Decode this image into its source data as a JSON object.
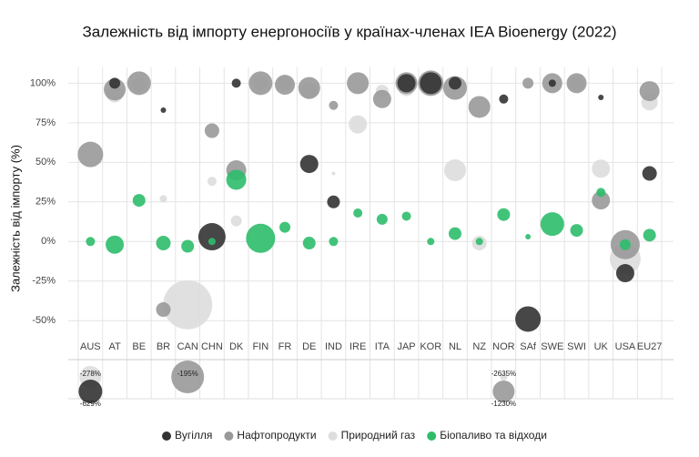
{
  "chart_data": {
    "type": "bubble",
    "title": "Залежність від імпорту енергоносіїв у країнах-членах IEA Bioenergy (2022)",
    "y_label": "Залежність від імпорту (%)",
    "categories": [
      "AUS",
      "AT",
      "BE",
      "BR",
      "CAN",
      "CHN",
      "DK",
      "FIN",
      "FR",
      "DE",
      "IND",
      "IRE",
      "ITA",
      "JAP",
      "KOR",
      "NL",
      "NZ",
      "NOR",
      "SAf",
      "SWE",
      "SWI",
      "UK",
      "USA",
      "EU27"
    ],
    "ylim": [
      -70,
      110
    ],
    "yticks": [
      {
        "value": 100,
        "label": "100%"
      },
      {
        "value": 75,
        "label": "75%"
      },
      {
        "value": 50,
        "label": "50%"
      },
      {
        "value": 25,
        "label": "25%"
      },
      {
        "value": 0,
        "label": "0%"
      },
      {
        "value": -25,
        "label": "-25%"
      },
      {
        "value": -50,
        "label": "-50%"
      }
    ],
    "grid": true,
    "legend": "bottom",
    "series": [
      {
        "name": "Природний газ",
        "color": "#dddddd",
        "values": [
          -278,
          93,
          99,
          27,
          -40,
          38,
          13,
          100,
          100,
          95,
          43,
          74,
          95,
          97,
          100,
          45,
          -1,
          -2635,
          null,
          100,
          100,
          46,
          -11,
          88
        ],
        "sizes": [
          144,
          81,
          64,
          16,
          729,
          25,
          36,
          64,
          64,
          81,
          4,
          100,
          49,
          81,
          121,
          144,
          64,
          16,
          null,
          9,
          64,
          100,
          289,
          81
        ],
        "value_labels": [
          "-278%",
          null,
          null,
          null,
          null,
          null,
          null,
          null,
          null,
          null,
          null,
          null,
          null,
          null,
          null,
          null,
          null,
          "-2635%",
          null,
          null,
          null,
          null,
          null,
          null
        ]
      },
      {
        "name": "Нафтопродукти",
        "color": "#999999",
        "values": [
          55,
          96,
          100,
          -43,
          -195,
          70,
          45,
          100,
          99,
          97,
          86,
          100,
          90,
          100,
          100,
          97,
          85,
          -1230,
          100,
          100,
          100,
          26,
          -2,
          95
        ],
        "sizes": [
          196,
          144,
          169,
          64,
          324,
          64,
          121,
          169,
          121,
          144,
          25,
          144,
          100,
          144,
          196,
          169,
          144,
          144,
          36,
          121,
          121,
          100,
          256,
          121
        ],
        "value_labels": [
          null,
          null,
          null,
          null,
          "-195%",
          null,
          null,
          null,
          null,
          null,
          null,
          null,
          null,
          null,
          null,
          null,
          null,
          "-1230%",
          null,
          null,
          null,
          null,
          null,
          null
        ]
      },
      {
        "name": "Вугілля",
        "color": "#333333",
        "values": [
          -629,
          100,
          null,
          83,
          null,
          3,
          100,
          null,
          null,
          49,
          25,
          null,
          null,
          100,
          100,
          100,
          null,
          90,
          -49,
          100,
          null,
          91,
          -20,
          43
        ],
        "sizes": [
          169,
          36,
          null,
          9,
          null,
          225,
          25,
          null,
          null,
          100,
          49,
          null,
          null,
          100,
          144,
          49,
          null,
          25,
          196,
          16,
          null,
          9,
          100,
          64
        ],
        "value_labels": [
          "-629%",
          null,
          null,
          null,
          null,
          null,
          null,
          null,
          null,
          null,
          null,
          null,
          null,
          null,
          null,
          null,
          null,
          null,
          null,
          null,
          null,
          null,
          null,
          null
        ]
      },
      {
        "name": "Біопаливо та відходи",
        "color": "#2ebd6b",
        "values": [
          0,
          -2,
          26,
          -1,
          -3,
          0,
          39,
          2,
          9,
          -1,
          0,
          18,
          14,
          16,
          0,
          5,
          0,
          17,
          3,
          11,
          7,
          31,
          -2,
          4
        ],
        "sizes": [
          25,
          100,
          49,
          64,
          49,
          16,
          121,
          256,
          36,
          49,
          25,
          25,
          36,
          25,
          16,
          49,
          16,
          49,
          9,
          169,
          49,
          25,
          36,
          49
        ]
      }
    ]
  }
}
